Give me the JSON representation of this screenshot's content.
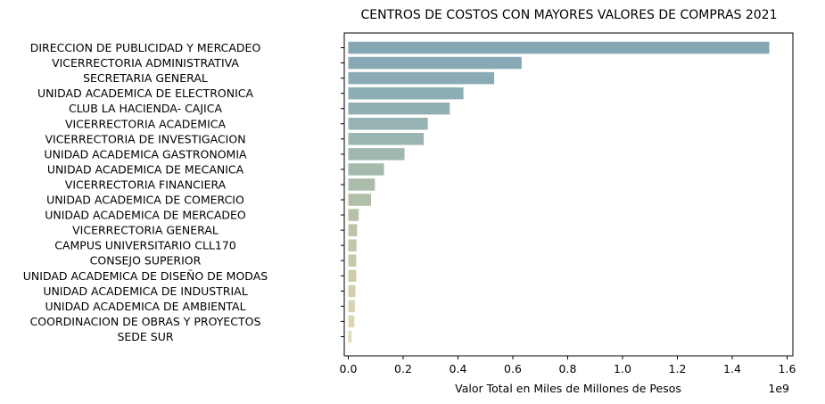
{
  "chart_data": {
    "type": "bar",
    "orientation": "horizontal",
    "title": "CENTROS DE COSTOS CON MAYORES VALORES DE COMPRAS 2021",
    "xlabel": "Valor Total en Miles de Millones de Pesos",
    "ylabel": "",
    "x_offset_label": "1e9",
    "xlim": [
      0,
      1.6
    ],
    "xticks": [
      0.0,
      0.2,
      0.4,
      0.6,
      0.8,
      1.0,
      1.2,
      1.4,
      1.6
    ],
    "xtick_labels": [
      "0.0",
      "0.2",
      "0.4",
      "0.6",
      "0.8",
      "1.0",
      "1.2",
      "1.4",
      "1.6"
    ],
    "grid": false,
    "categories": [
      "DIRECCION DE PUBLICIDAD Y MERCADEO",
      "VICERRECTORIA  ADMINISTRATIVA",
      "SECRETARIA GENERAL",
      "UNIDAD ACADEMICA DE ELECTRONICA",
      "CLUB LA HACIENDA- CAJICA",
      "VICERRECTORIA ACADEMICA",
      "VICERRECTORIA DE INVESTIGACION",
      "UNIDAD ACADEMICA GASTRONOMIA",
      "UNIDAD ACADEMICA DE MECANICA",
      "VICERRECTORIA FINANCIERA",
      "UNIDAD ACADEMICA DE COMERCIO",
      "UNIDAD ACADEMICA DE MERCADEO",
      "VICERRECTORIA GENERAL",
      "CAMPUS UNIVERSITARIO CLL170",
      "CONSEJO SUPERIOR",
      "UNIDAD ACADEMICA DE DISEÑO DE MODAS",
      "UNIDAD ACADEMICA DE INDUSTRIAL",
      "UNIDAD ACADEMICA DE AMBIENTAL",
      "COORDINACION DE OBRAS Y PROYECTOS",
      "SEDE SUR"
    ],
    "values": [
      1.535,
      0.632,
      0.532,
      0.42,
      0.37,
      0.29,
      0.275,
      0.205,
      0.13,
      0.097,
      0.083,
      0.038,
      0.032,
      0.03,
      0.029,
      0.029,
      0.026,
      0.024,
      0.022,
      0.012
    ],
    "colors": [
      "#84a6b3",
      "#87a9b5",
      "#8aabb5",
      "#8eaeb5",
      "#92b0b4",
      "#96b2b3",
      "#9ab5b1",
      "#a0b7af",
      "#a5b9ad",
      "#abbcab",
      "#b1bea9",
      "#b7c1a8",
      "#bdc3a7",
      "#c3c6a7",
      "#c8c8a8",
      "#ceccaa",
      "#d3cfad",
      "#d8d3b0",
      "#dcd6b3",
      "#e0dab7"
    ]
  }
}
